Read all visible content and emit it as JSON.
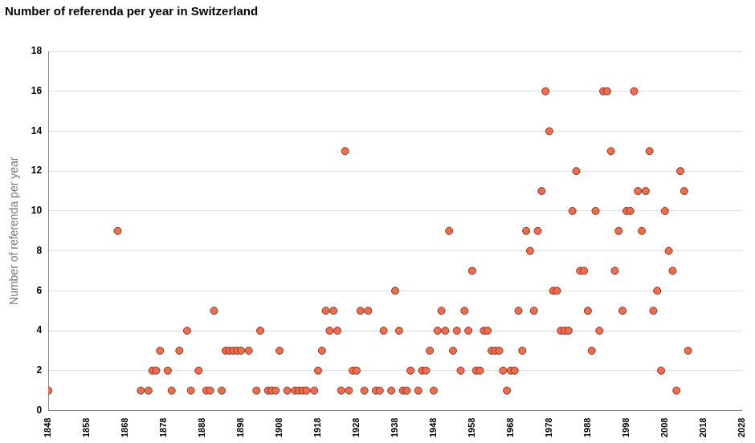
{
  "chart_data": {
    "type": "scatter",
    "title": "Number of referenda per year in Switzerland",
    "y_label": "Number of referenda per year",
    "x": [
      1848,
      1866,
      1872,
      1874,
      1875,
      1876,
      1877,
      1879,
      1880,
      1882,
      1884,
      1885,
      1887,
      1889,
      1890,
      1891,
      1893,
      1894,
      1895,
      1896,
      1897,
      1898,
      1900,
      1902,
      1903,
      1905,
      1906,
      1907,
      1908,
      1910,
      1912,
      1913,
      1914,
      1915,
      1917,
      1918,
      1919,
      1920,
      1921,
      1922,
      1923,
      1924,
      1925,
      1926,
      1927,
      1928,
      1929,
      1930,
      1931,
      1933,
      1934,
      1935,
      1937,
      1938,
      1939,
      1940,
      1941,
      1942,
      1944,
      1945,
      1946,
      1947,
      1948,
      1949,
      1950,
      1951,
      1952,
      1953,
      1954,
      1955,
      1956,
      1957,
      1958,
      1959,
      1960,
      1961,
      1962,
      1963,
      1964,
      1965,
      1966,
      1967,
      1968,
      1969,
      1970,
      1971,
      1972,
      1973,
      1974,
      1975,
      1976,
      1977,
      1978,
      1979,
      1980,
      1981,
      1982,
      1983,
      1984,
      1985,
      1986,
      1987,
      1988,
      1989,
      1990,
      1991,
      1992,
      1993,
      1994,
      1995,
      1996,
      1997,
      1998,
      1999,
      2000,
      2001,
      2002,
      2003,
      2004,
      2005,
      2006,
      2007,
      2008,
      2009,
      2010,
      2011,
      2012,
      2013,
      2014
    ],
    "values": [
      1,
      9,
      1,
      1,
      2,
      2,
      3,
      2,
      1,
      3,
      4,
      1,
      2,
      1,
      1,
      5,
      1,
      3,
      3,
      3,
      3,
      3,
      3,
      1,
      4,
      1,
      1,
      1,
      3,
      1,
      1,
      1,
      1,
      1,
      1,
      2,
      3,
      5,
      4,
      5,
      4,
      1,
      13,
      1,
      2,
      2,
      5,
      1,
      5,
      1,
      1,
      4,
      1,
      6,
      4,
      1,
      1,
      2,
      1,
      2,
      2,
      3,
      1,
      4,
      5,
      4,
      9,
      3,
      4,
      2,
      5,
      4,
      7,
      2,
      2,
      4,
      4,
      3,
      3,
      3,
      2,
      1,
      2,
      2,
      5,
      3,
      9,
      8,
      5,
      9,
      11,
      16,
      14,
      6,
      6,
      4,
      4,
      4,
      10,
      12,
      7,
      7,
      5,
      3,
      10,
      4,
      16,
      16,
      13,
      7,
      9,
      5,
      10,
      10,
      16,
      11,
      9,
      11,
      13,
      5,
      6,
      2,
      10,
      8,
      7,
      1,
      12,
      11,
      3
    ],
    "color": "#f26b4a",
    "marker": "circle",
    "xlim": [
      1848,
      2028
    ],
    "xticks": [
      1848,
      1858,
      1868,
      1878,
      1888,
      1898,
      1908,
      1918,
      1928,
      1938,
      1948,
      1958,
      1968,
      1978,
      1988,
      1998,
      2008,
      2018,
      2028
    ],
    "ylim": [
      0,
      18
    ],
    "yticks": [
      0,
      2,
      4,
      6,
      8,
      10,
      12,
      14,
      16,
      18
    ],
    "grid": true
  }
}
